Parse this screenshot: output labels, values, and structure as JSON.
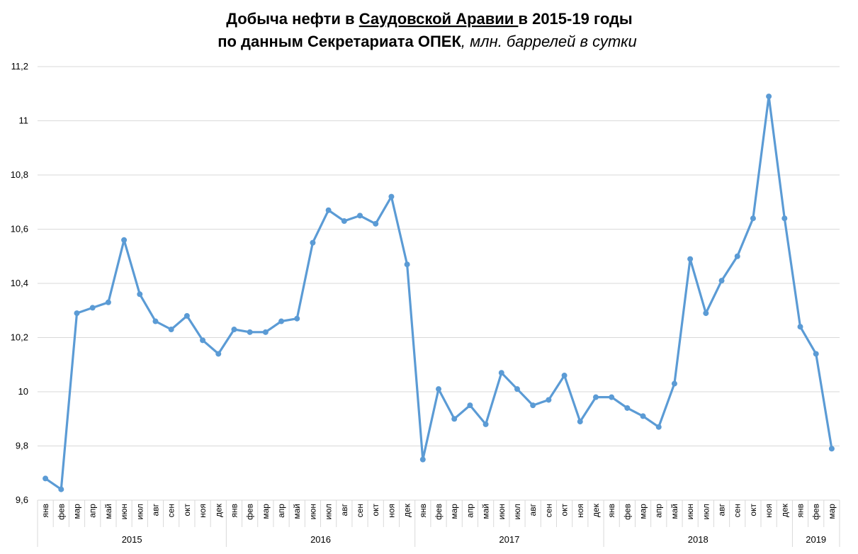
{
  "chart_data": {
    "type": "line",
    "title_line1_prefix": "Добыча нефти в ",
    "title_line1_underlined": "Саудовской Аравии ",
    "title_line1_suffix": "в 2015-19 годы",
    "title_line2_bold": "по данным Секретариата ОПЕК",
    "title_line2_italic": ", млн. баррелей в сутки",
    "ylim": [
      9.6,
      11.2
    ],
    "yticks": [
      {
        "value": 9.6,
        "label": "9,6"
      },
      {
        "value": 9.8,
        "label": "9,8"
      },
      {
        "value": 10.0,
        "label": "10"
      },
      {
        "value": 10.2,
        "label": "10,2"
      },
      {
        "value": 10.4,
        "label": "10,4"
      },
      {
        "value": 10.6,
        "label": "10,6"
      },
      {
        "value": 10.8,
        "label": "10,8"
      },
      {
        "value": 11.0,
        "label": "11"
      },
      {
        "value": 11.2,
        "label": "11,2"
      }
    ],
    "grid": true,
    "line_color": "#5B9BD5",
    "grid_color": "#D9D9D9",
    "categories": [
      "янв",
      "фев",
      "мар",
      "апр",
      "май",
      "июн",
      "июл",
      "авг",
      "сен",
      "окт",
      "ноя",
      "дек",
      "янв",
      "фев",
      "мар",
      "апр",
      "май",
      "июн",
      "июл",
      "авг",
      "сен",
      "окт",
      "ноя",
      "дек",
      "янв",
      "фев",
      "мар",
      "апр",
      "май",
      "июн",
      "июл",
      "авг",
      "сен",
      "окт",
      "ноя",
      "дек",
      "янв",
      "фев",
      "мар",
      "апр",
      "май",
      "июн",
      "июл",
      "авг",
      "сен",
      "окт",
      "ноя",
      "дек",
      "янв",
      "фев",
      "мар"
    ],
    "groups": [
      {
        "label": "2015",
        "count": 12
      },
      {
        "label": "2016",
        "count": 12
      },
      {
        "label": "2017",
        "count": 12
      },
      {
        "label": "2018",
        "count": 12
      },
      {
        "label": "2019",
        "count": 3
      }
    ],
    "values": [
      9.68,
      9.64,
      10.29,
      10.31,
      10.33,
      10.56,
      10.36,
      10.26,
      10.23,
      10.28,
      10.19,
      10.14,
      10.23,
      10.22,
      10.22,
      10.26,
      10.27,
      10.55,
      10.67,
      10.63,
      10.65,
      10.62,
      10.72,
      10.47,
      9.75,
      10.01,
      9.9,
      9.95,
      9.88,
      10.07,
      10.01,
      9.95,
      9.97,
      10.06,
      9.89,
      9.98,
      9.98,
      9.94,
      9.91,
      9.87,
      10.03,
      10.49,
      10.29,
      10.41,
      10.5,
      10.64,
      11.09,
      10.64,
      10.24,
      10.14,
      9.79
    ]
  }
}
